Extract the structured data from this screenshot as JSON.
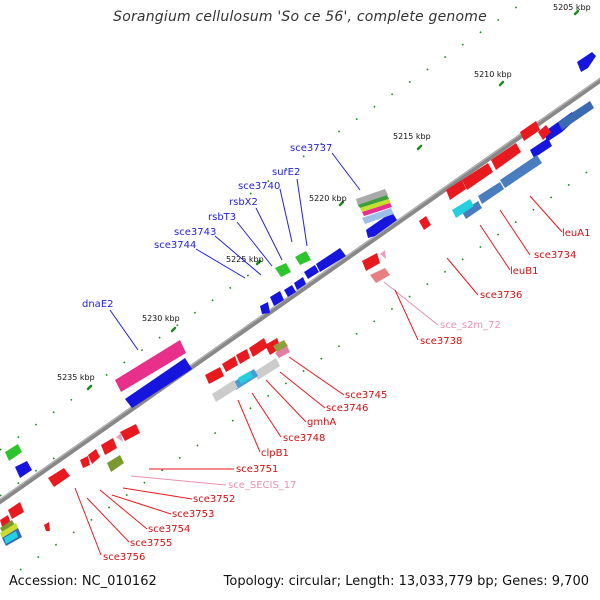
{
  "title": "Sorangium cellulosum 'So ce 56', complete genome",
  "footer": {
    "accession": "Accession: NC_010162",
    "topology": "Topology: circular; Length: 13,033,779 bp; Genes: 9,700"
  },
  "ruler": [
    "5205 kbp",
    "5210 kbp",
    "5215 kbp",
    "5220 kbp",
    "5225 kbp",
    "5230 kbp",
    "5235 kbp"
  ],
  "colors": {
    "forward": "#e8191f",
    "reverse": "#1515dd",
    "backbone": "#777777",
    "tick": "#1a8a1a",
    "rna": "#e880a0",
    "rna_label": "#e890b0"
  },
  "labels": [
    {
      "text": "sce3737",
      "color": "blue"
    },
    {
      "text": "surE2",
      "color": "blue"
    },
    {
      "text": "sce3740",
      "color": "blue"
    },
    {
      "text": "rsbX2",
      "color": "blue"
    },
    {
      "text": "rsbT3",
      "color": "blue"
    },
    {
      "text": "sce3743",
      "color": "blue"
    },
    {
      "text": "sce3744",
      "color": "blue"
    },
    {
      "text": "dnaE2",
      "color": "blue"
    },
    {
      "text": "leuA1",
      "color": "red"
    },
    {
      "text": "sce3734",
      "color": "red"
    },
    {
      "text": "leuB1",
      "color": "red"
    },
    {
      "text": "sce3736",
      "color": "red"
    },
    {
      "text": "sce_s2m_72",
      "color": "pink"
    },
    {
      "text": "sce3738",
      "color": "red"
    },
    {
      "text": "sce3745",
      "color": "red"
    },
    {
      "text": "sce3746",
      "color": "red"
    },
    {
      "text": "gmhA",
      "color": "red"
    },
    {
      "text": "sce3748",
      "color": "red"
    },
    {
      "text": "clpB1",
      "color": "red"
    },
    {
      "text": "sce3751",
      "color": "red"
    },
    {
      "text": "sce_SECIS_17",
      "color": "pink"
    },
    {
      "text": "sce3752",
      "color": "red"
    },
    {
      "text": "sce3753",
      "color": "red"
    },
    {
      "text": "sce3754",
      "color": "red"
    },
    {
      "text": "sce3755",
      "color": "red"
    },
    {
      "text": "sce3756",
      "color": "red"
    }
  ]
}
